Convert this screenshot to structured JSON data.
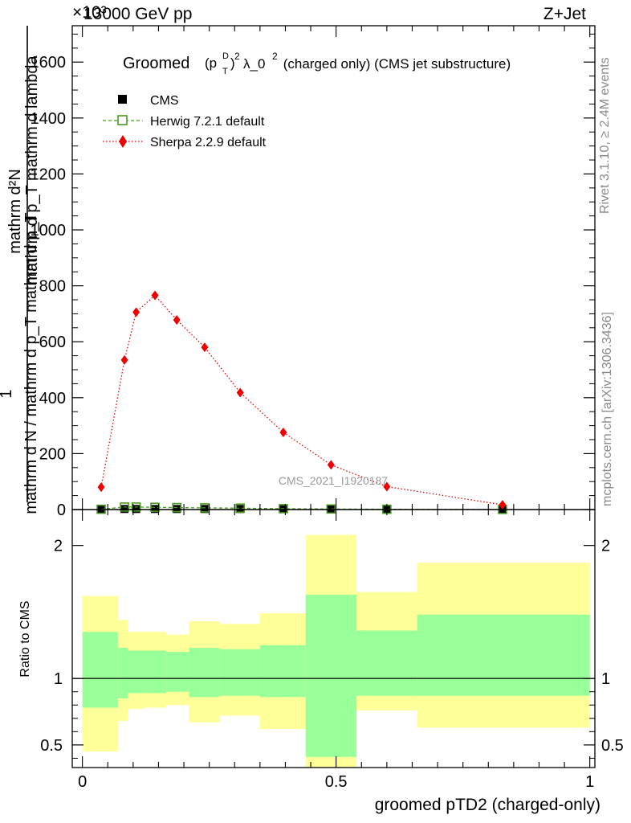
{
  "header": {
    "left": "13000 GeV pp",
    "right": "Z+Jet",
    "exponent": "×10³"
  },
  "side_labels": {
    "rivet": "Rivet 3.1.10, ≥ 2.4M events",
    "mcplots": "mcplots.cern.ch [arXiv:1306.3436]"
  },
  "chart_data": [
    {
      "type": "scatter",
      "title": "Groomed (p_T^D)^2 λ_0^2 (charged only) (CMS jet substructure)",
      "title_parts": {
        "pre": "Groomed",
        "sup_d": "D",
        "sub_t": "T",
        "sup2": "2",
        "mid": "λ_0",
        "post": " (charged only) (CMS jet substructure)"
      },
      "ylabel_numerator": "mathrm d²N",
      "ylabel_numerator_lines": [
        "mathrm d²N",
        "mathrm d p_T mathrm d lambda"
      ],
      "ylabel_one": "1",
      "ylabel_denominator": "mathrm d N / mathrm d p_T mathrm d p_T",
      "watermark": "CMS_2021_I1920187",
      "ylim": [
        0,
        1730
      ],
      "y_ticks": [
        0,
        200,
        400,
        600,
        800,
        1000,
        1200,
        1400,
        1600
      ],
      "x_range": [
        -0.02,
        1.01
      ],
      "legend_position": "top-left",
      "series": [
        {
          "name": "CMS",
          "color": "#000000",
          "marker": "square",
          "x": [
            0.037,
            0.083,
            0.106,
            0.143,
            0.186,
            0.241,
            0.311,
            0.396,
            0.49,
            0.6,
            0.828
          ],
          "values": [
            1.0,
            2.0,
            2.0,
            2.0,
            2.0,
            2.0,
            2.0,
            1.5,
            1.0,
            0.5,
            0.2
          ]
        },
        {
          "name": "Herwig 7.2.1 default",
          "color": "#4a9a1f",
          "marker": "open-square",
          "line": "dashed",
          "x": [
            0.037,
            0.083,
            0.106,
            0.143,
            0.186,
            0.241,
            0.311,
            0.396,
            0.49,
            0.6,
            0.828
          ],
          "values": [
            1.0,
            9.0,
            9.0,
            8.0,
            7.0,
            6.0,
            5.0,
            3.0,
            2.0,
            1.0,
            0.3
          ]
        },
        {
          "name": "Sherpa 2.2.9 default",
          "color": "#ee0000",
          "marker": "diamond",
          "line": "dotted",
          "x": [
            0.037,
            0.083,
            0.106,
            0.143,
            0.186,
            0.241,
            0.311,
            0.396,
            0.49,
            0.6,
            0.828
          ],
          "values": [
            80,
            535,
            706,
            766,
            678,
            580,
            418,
            276,
            160,
            82,
            17
          ]
        }
      ]
    },
    {
      "type": "area",
      "ylabel": "Ratio to CMS",
      "xlabel": "groomed pTD2 (charged-only)",
      "ylim": [
        0.33,
        2.27
      ],
      "x_range": [
        -0.02,
        1.01
      ],
      "y_ticks": [
        0.5,
        1,
        2
      ],
      "x_ticks": [
        0,
        0.5,
        1
      ],
      "bins": [
        0,
        0.07,
        0.09,
        0.12,
        0.165,
        0.21,
        0.27,
        0.35,
        0.44,
        0.54,
        0.66,
        1.0
      ],
      "band_inner": {
        "color": "#99ff99",
        "low": [
          0.78,
          0.85,
          0.89,
          0.89,
          0.9,
          0.86,
          0.87,
          0.86,
          0.41,
          0.87,
          0.87
        ],
        "high": [
          1.35,
          1.23,
          1.21,
          1.21,
          1.2,
          1.23,
          1.22,
          1.25,
          1.63,
          1.36,
          1.48
        ]
      },
      "band_outer": {
        "color": "#ffff99",
        "low": [
          0.45,
          0.68,
          0.77,
          0.78,
          0.8,
          0.67,
          0.72,
          0.62,
          0.32,
          0.76,
          0.63
        ],
        "high": [
          1.62,
          1.44,
          1.35,
          1.35,
          1.33,
          1.43,
          1.41,
          1.49,
          2.08,
          1.65,
          1.87
        ]
      },
      "reference": 1
    }
  ]
}
